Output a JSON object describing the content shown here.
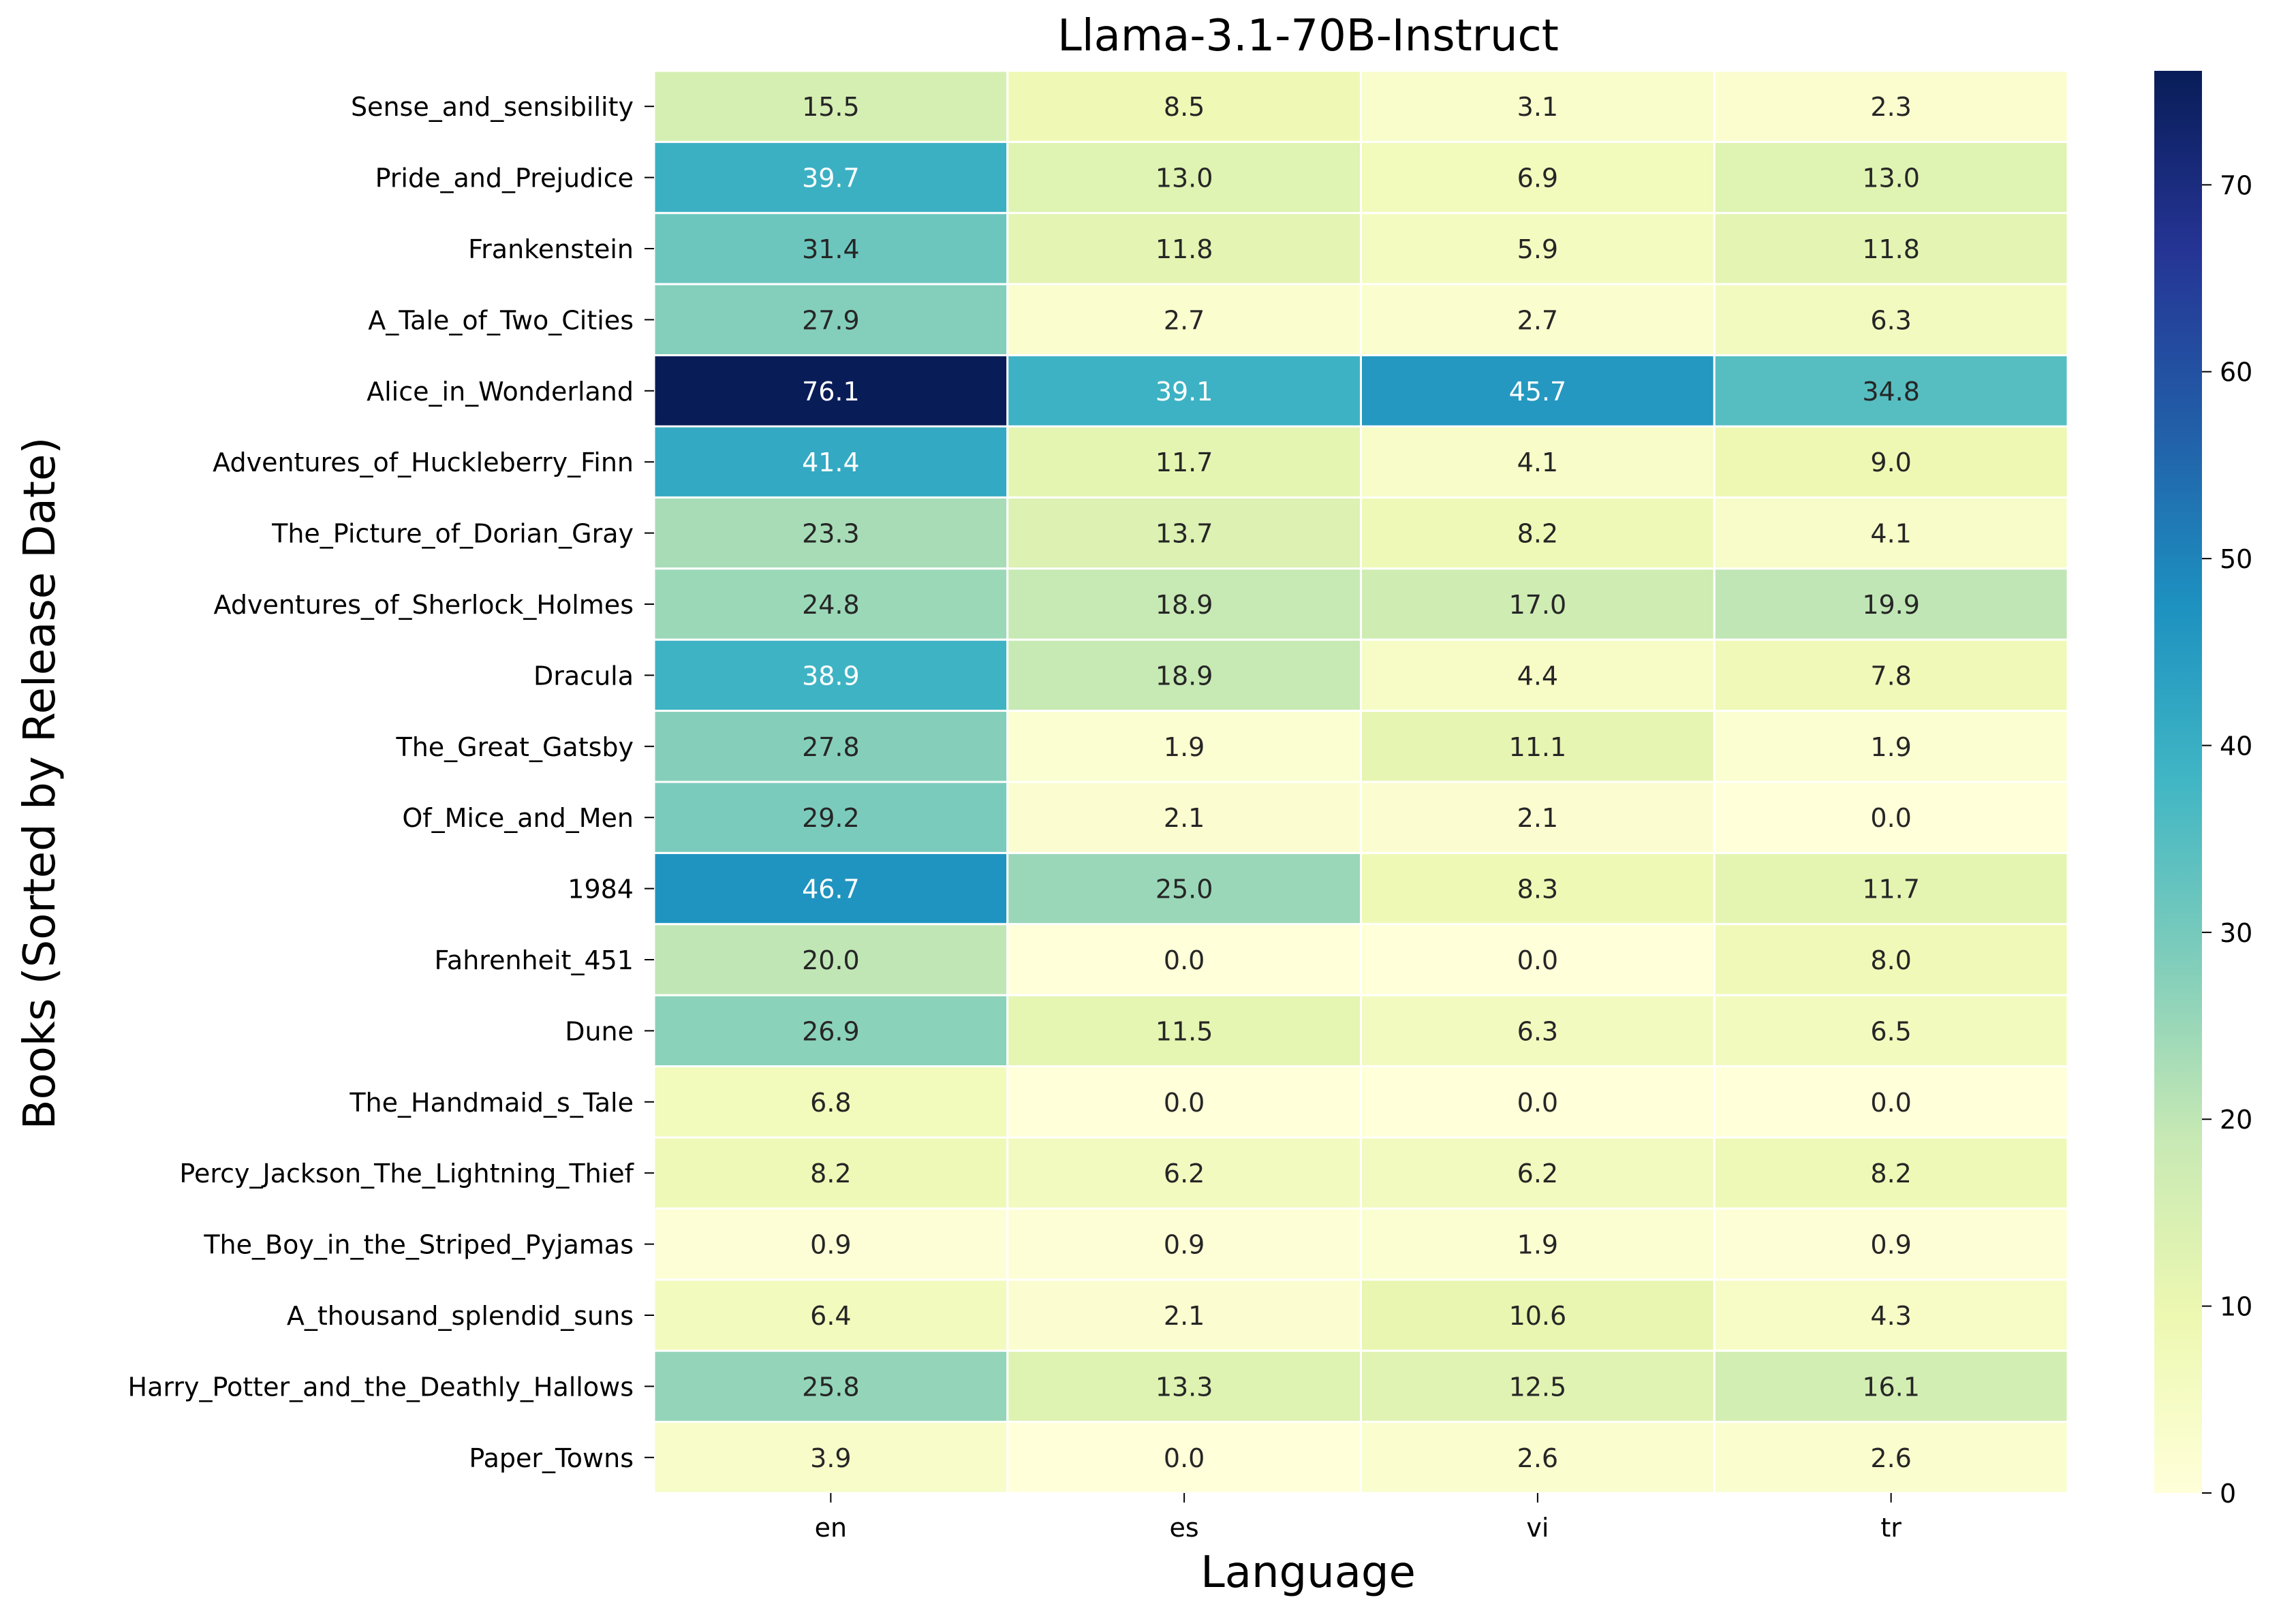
{
  "chart_data": {
    "type": "heatmap",
    "title": "Llama-3.1-70B-Instruct",
    "xlabel": "Language",
    "ylabel": "Books (Sorted by Release Date)",
    "x_categories": [
      "en",
      "es",
      "vi",
      "tr"
    ],
    "y_categories": [
      "Sense_and_sensibility",
      "Pride_and_Prejudice",
      "Frankenstein",
      "A_Tale_of_Two_Cities",
      "Alice_in_Wonderland",
      "Adventures_of_Huckleberry_Finn",
      "The_Picture_of_Dorian_Gray",
      "Adventures_of_Sherlock_Holmes",
      "Dracula",
      "The_Great_Gatsby",
      "Of_Mice_and_Men",
      "1984",
      "Fahrenheit_451",
      "Dune",
      "The_Handmaid_s_Tale",
      "Percy_Jackson_The_Lightning_Thief",
      "The_Boy_in_the_Striped_Pyjamas",
      "A_thousand_splendid_suns",
      "Harry_Potter_and_the_Deathly_Hallows",
      "Paper_Towns"
    ],
    "values": [
      [
        15.5,
        8.5,
        3.1,
        2.3
      ],
      [
        39.7,
        13.0,
        6.9,
        13.0
      ],
      [
        31.4,
        11.8,
        5.9,
        11.8
      ],
      [
        27.9,
        2.7,
        2.7,
        6.3
      ],
      [
        76.1,
        39.1,
        45.7,
        34.8
      ],
      [
        41.4,
        11.7,
        4.1,
        9.0
      ],
      [
        23.3,
        13.7,
        8.2,
        4.1
      ],
      [
        24.8,
        18.9,
        17.0,
        19.9
      ],
      [
        38.9,
        18.9,
        4.4,
        7.8
      ],
      [
        27.8,
        1.9,
        11.1,
        1.9
      ],
      [
        29.2,
        2.1,
        2.1,
        0.0
      ],
      [
        46.7,
        25.0,
        8.3,
        11.7
      ],
      [
        20.0,
        0.0,
        0.0,
        8.0
      ],
      [
        26.9,
        11.5,
        6.3,
        6.5
      ],
      [
        6.8,
        0.0,
        0.0,
        0.0
      ],
      [
        8.2,
        6.2,
        6.2,
        8.2
      ],
      [
        0.9,
        0.9,
        1.9,
        0.9
      ],
      [
        6.4,
        2.1,
        10.6,
        4.3
      ],
      [
        25.8,
        13.3,
        12.5,
        16.1
      ],
      [
        3.9,
        0.0,
        2.6,
        2.6
      ]
    ],
    "colormap": "YlGnBu",
    "colorbar": {
      "range": [
        0,
        76.1
      ],
      "ticks": [
        0,
        10,
        20,
        30,
        40,
        50,
        60,
        70
      ]
    },
    "annotate": true,
    "grid": false,
    "cell_border_color": "#ffffff"
  }
}
